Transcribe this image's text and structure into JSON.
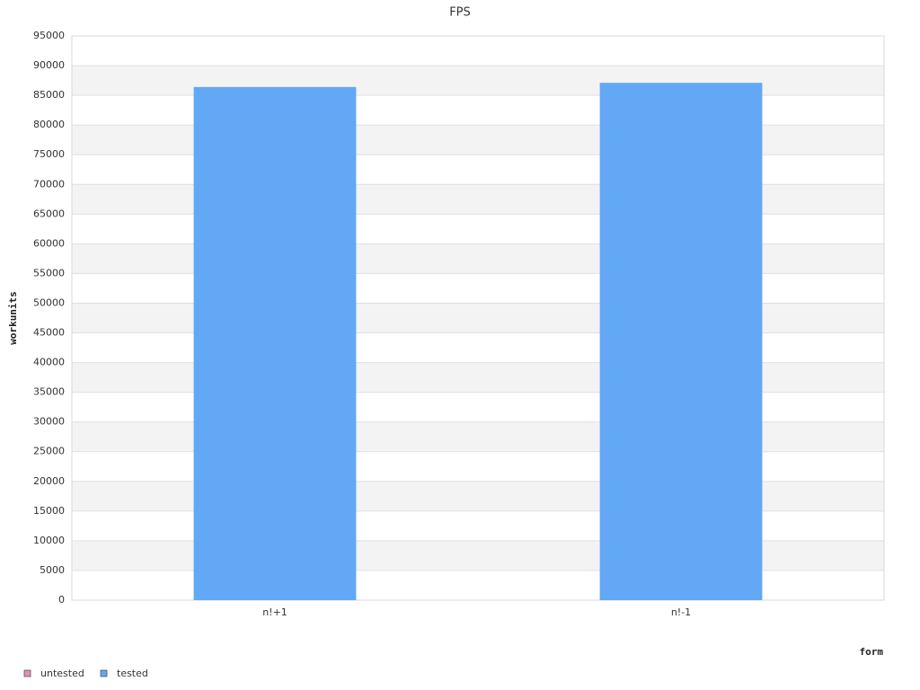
{
  "chart_data": {
    "type": "bar",
    "title": "FPS",
    "y_label": "workunits",
    "x_label": "form",
    "categories": [
      "n!+1",
      "n!-1"
    ],
    "series": [
      {
        "name": "untested",
        "color": "#e58fb7",
        "values": [
          null,
          null
        ]
      },
      {
        "name": "tested",
        "color": "#62a8f5",
        "values": [
          86400,
          87100
        ]
      }
    ],
    "ylim": [
      0,
      95000
    ],
    "yticks": [
      0,
      5000,
      10000,
      15000,
      20000,
      25000,
      30000,
      35000,
      40000,
      45000,
      50000,
      55000,
      60000,
      65000,
      70000,
      75000,
      80000,
      85000,
      90000,
      95000
    ],
    "grid": true,
    "legend": "bottom-left"
  }
}
